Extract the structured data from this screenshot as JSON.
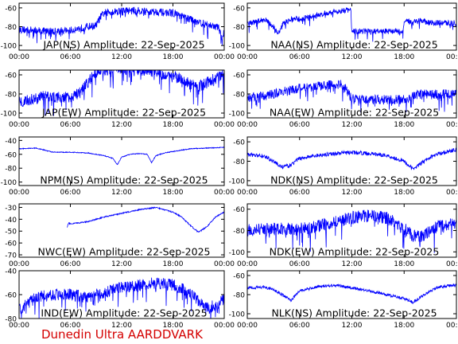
{
  "footer": {
    "label": "Dunedin Ultra AARDDVARK",
    "color": "#d40000"
  },
  "style": {
    "trace_color": "#0000ff",
    "axis_color": "#000000",
    "background": "#ffffff"
  },
  "chart_data": [
    {
      "type": "line",
      "title": "JAP(NS) Amplitude: 22-Sep-2025",
      "ylim": [
        -105,
        -55
      ],
      "yticks": [
        -100,
        -80,
        -60
      ],
      "xlim": [
        0,
        24
      ],
      "xtick_labels": [
        "00:00",
        "06:00",
        "12:00",
        "18:00",
        "00:00"
      ],
      "x": [
        0,
        2,
        4,
        6,
        8,
        9,
        9.5,
        10,
        11,
        12,
        13,
        14,
        15,
        16,
        17,
        18,
        19,
        20,
        21,
        22,
        23,
        23.5,
        23.7,
        24
      ],
      "y": [
        -83,
        -84,
        -85,
        -84,
        -80,
        -79,
        -70,
        -65,
        -64,
        -63,
        -63,
        -63,
        -64,
        -64,
        -65,
        -65,
        -69,
        -72,
        -75,
        -78,
        -80,
        -82,
        -95,
        -85
      ],
      "noise": 4
    },
    {
      "type": "line",
      "title": "NAA(NS) Amplitude: 22-Sep-2025",
      "ylim": [
        -105,
        -55
      ],
      "yticks": [
        -100,
        -80,
        -60
      ],
      "xlim": [
        0,
        24
      ],
      "xtick_labels": [
        "00:00",
        "06:00",
        "12:00",
        "18:00",
        "00:00"
      ],
      "x": [
        0,
        1,
        2,
        3,
        3.5,
        4,
        5,
        6,
        7,
        8,
        9,
        10,
        11,
        11.9,
        12,
        14,
        16,
        17.9,
        18,
        19,
        20,
        21,
        22,
        23,
        24
      ],
      "y": [
        -76,
        -75,
        -72,
        -80,
        -88,
        -78,
        -72,
        -72,
        -70,
        -68,
        -66,
        -64,
        -63,
        -62,
        -85,
        -85,
        -85,
        -85,
        -75,
        -74,
        -73,
        -76,
        -76,
        -76,
        -76
      ],
      "noise": 3
    },
    {
      "type": "line",
      "title": "JAP(EW) Amplitude: 22-Sep-2025",
      "ylim": [
        -105,
        -55
      ],
      "yticks": [
        -100,
        -80,
        -60
      ],
      "xlim": [
        0,
        24
      ],
      "xtick_labels": [
        "00:00",
        "06:00",
        "12:00",
        "18:00",
        "00:00"
      ],
      "x": [
        0,
        2,
        3,
        5,
        6,
        7,
        8,
        9,
        10,
        11,
        12,
        13,
        14,
        15,
        16,
        17,
        18,
        19,
        20,
        21,
        22,
        23,
        24
      ],
      "y": [
        -88,
        -85,
        -82,
        -84,
        -83,
        -80,
        -68,
        -57,
        -55,
        -54,
        -54,
        -54,
        -55,
        -55,
        -57,
        -60,
        -62,
        -64,
        -70,
        -72,
        -68,
        -63,
        -60
      ],
      "noise": 6
    },
    {
      "type": "line",
      "title": "NAA(EW) Amplitude: 22-Sep-2025",
      "ylim": [
        -105,
        -55
      ],
      "yticks": [
        -100,
        -80,
        -60
      ],
      "xlim": [
        0,
        24
      ],
      "xtick_labels": [
        "00:00",
        "06:00",
        "12:00",
        "18:00",
        "00:00"
      ],
      "x": [
        0,
        2,
        4,
        6,
        8,
        10,
        11,
        12,
        14,
        16,
        18,
        19,
        20,
        22,
        24
      ],
      "y": [
        -84,
        -82,
        -78,
        -74,
        -72,
        -70,
        -70,
        -85,
        -86,
        -86,
        -86,
        -82,
        -80,
        -80,
        -80
      ],
      "noise": 5
    },
    {
      "type": "line",
      "title": "NPM(NS) Amplitude: 22-Sep-2025",
      "ylim": [
        -105,
        -35
      ],
      "yticks": [
        -100,
        -80,
        -60,
        -40
      ],
      "xlim": [
        0,
        24
      ],
      "xtick_labels": [
        "00:00",
        "06:00",
        "12:00",
        "18:00",
        "00:00"
      ],
      "x": [
        0,
        2,
        3,
        4,
        6,
        8,
        10,
        11,
        11.5,
        12,
        13,
        14,
        15,
        15.5,
        16,
        17,
        18,
        20,
        22,
        24
      ],
      "y": [
        -52,
        -51,
        -54,
        -57,
        -57,
        -58,
        -62,
        -66,
        -75,
        -64,
        -60,
        -59,
        -60,
        -72,
        -62,
        -58,
        -56,
        -52,
        -51,
        -50
      ],
      "noise": 0.6
    },
    {
      "type": "line",
      "title": "NDK(NS) Amplitude: 22-Sep-2025",
      "ylim": [
        -105,
        -55
      ],
      "yticks": [
        -100,
        -80,
        -60
      ],
      "xlim": [
        0,
        24
      ],
      "xtick_labels": [
        "00:00",
        "06:00",
        "12:00",
        "18:00",
        "00:00"
      ],
      "x": [
        0,
        2,
        3,
        4,
        5,
        6,
        8,
        10,
        12,
        14,
        16,
        18,
        19,
        20,
        21,
        22,
        23,
        24
      ],
      "y": [
        -73,
        -75,
        -80,
        -86,
        -84,
        -77,
        -74,
        -72,
        -71,
        -72,
        -74,
        -80,
        -88,
        -82,
        -76,
        -72,
        -70,
        -68
      ],
      "noise": 2
    },
    {
      "type": "line",
      "title": "NWC(EW) Amplitude: 22-Sep-2025",
      "ylim": [
        -72,
        -27
      ],
      "yticks": [
        -70,
        -60,
        -50,
        -40,
        -30
      ],
      "xlim": [
        0,
        24
      ],
      "xtick_labels": [
        "00:00",
        "06:00",
        "12:00",
        "18:00",
        "00:00"
      ],
      "x": [
        5.6,
        5.8,
        6,
        8,
        10,
        12,
        14,
        16,
        17,
        18,
        19,
        20,
        21,
        22,
        23,
        24
      ],
      "y": [
        -47,
        -43,
        -44,
        -42,
        -38,
        -35,
        -32,
        -30,
        -32,
        -34,
        -38,
        -45,
        -51,
        -46,
        -38,
        -34
      ],
      "noise": 0.5
    },
    {
      "type": "line",
      "title": "NDK(EW) Amplitude: 22-Sep-2025",
      "ylim": [
        -105,
        -55
      ],
      "yticks": [
        -100,
        -80,
        -60
      ],
      "xlim": [
        0,
        24
      ],
      "xtick_labels": [
        "00:00",
        "06:00",
        "12:00",
        "18:00",
        "00:00"
      ],
      "x": [
        0,
        2,
        4,
        6,
        8,
        10,
        12,
        14,
        16,
        18,
        19,
        20,
        21,
        22,
        24
      ],
      "y": [
        -80,
        -79,
        -78,
        -79,
        -76,
        -72,
        -68,
        -66,
        -68,
        -78,
        -85,
        -86,
        -80,
        -76,
        -74
      ],
      "noise": 6
    },
    {
      "type": "line",
      "title": "IND(EW) Amplitude: 22-Sep-2025",
      "ylim": [
        -80,
        -40
      ],
      "yticks": [
        -80,
        -60,
        -40
      ],
      "xlim": [
        0,
        24
      ],
      "xtick_labels": [
        "00:00",
        "06:00",
        "12:00",
        "18:00",
        "00:00"
      ],
      "x": [
        0,
        1,
        2,
        4,
        6,
        8,
        10,
        12,
        14,
        16,
        18,
        20,
        21,
        22,
        23,
        24
      ],
      "y": [
        -72,
        -68,
        -62,
        -60,
        -60,
        -62,
        -58,
        -54,
        -52,
        -50,
        -52,
        -58,
        -66,
        -72,
        -68,
        -64
      ],
      "noise": 5
    },
    {
      "type": "line",
      "title": "NLK(NS) Amplitude: 22-Sep-2025",
      "ylim": [
        -105,
        -55
      ],
      "yticks": [
        -100,
        -80,
        -60
      ],
      "xlim": [
        0,
        24
      ],
      "xtick_labels": [
        "00:00",
        "06:00",
        "12:00",
        "18:00",
        "00:00"
      ],
      "x": [
        0,
        2,
        3,
        4,
        5,
        6,
        8,
        10,
        12,
        14,
        16,
        18,
        19,
        20,
        21,
        22,
        24
      ],
      "y": [
        -73,
        -72,
        -75,
        -80,
        -86,
        -76,
        -72,
        -70,
        -73,
        -76,
        -80,
        -84,
        -88,
        -82,
        -76,
        -72,
        -70
      ],
      "noise": 1.5
    }
  ]
}
